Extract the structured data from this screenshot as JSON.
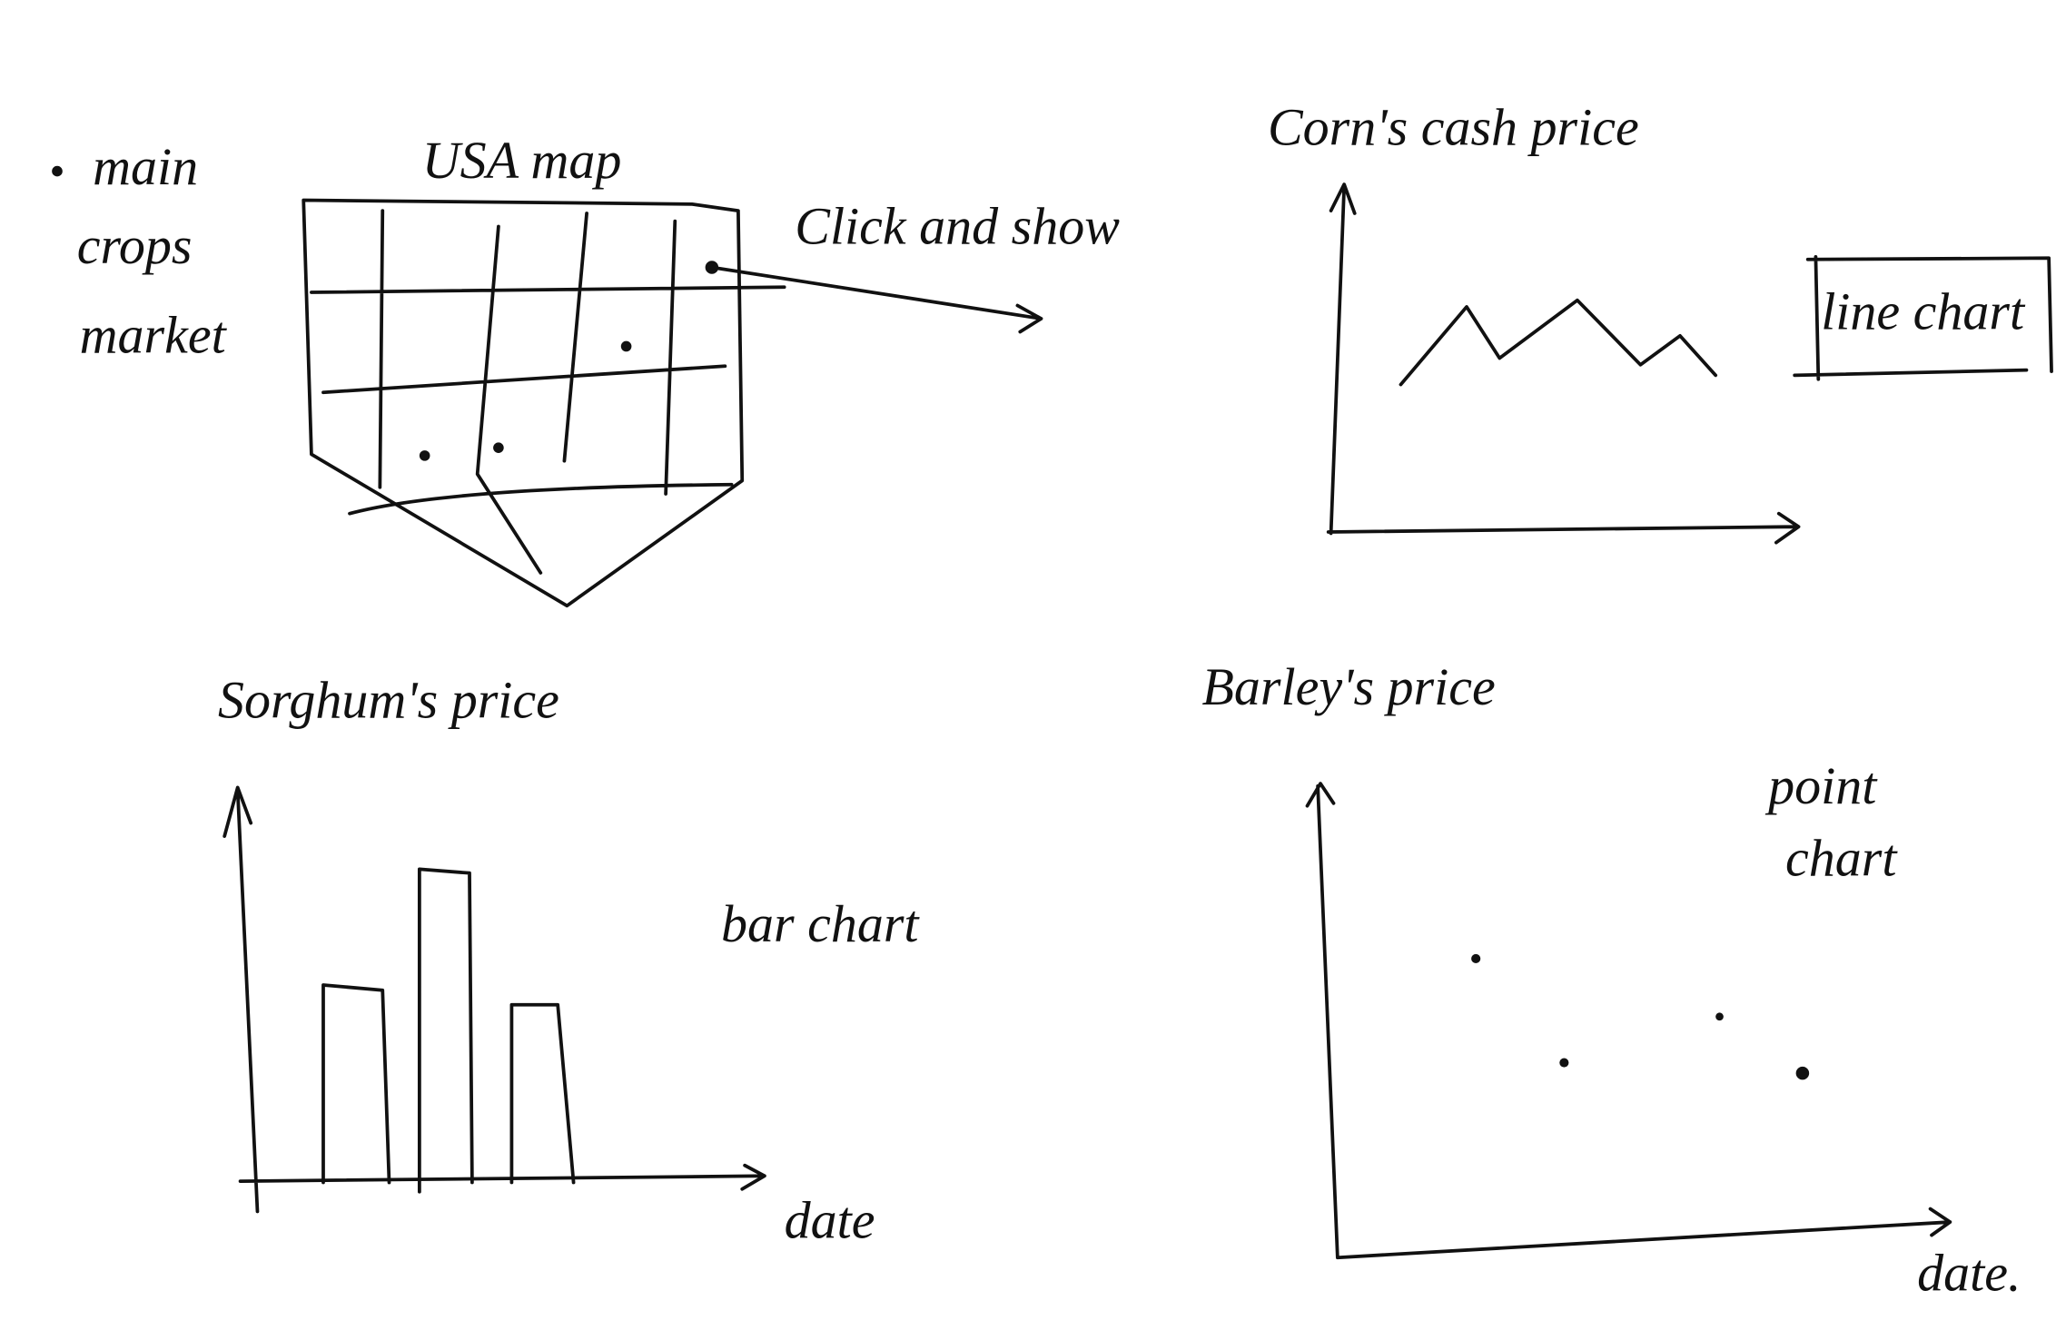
{
  "map_panel": {
    "label": [
      "main",
      "crops",
      "market"
    ],
    "title": "USA map",
    "annotation": "Click and show"
  },
  "line_panel": {
    "title": "Corn's cash price",
    "note": "line chart"
  },
  "bar_panel": {
    "title": "Sorghum's price",
    "note": "bar chart",
    "x_label": "date"
  },
  "point_panel": {
    "title": "Barley's price",
    "note": [
      "point",
      "chart"
    ],
    "x_label": "date."
  }
}
